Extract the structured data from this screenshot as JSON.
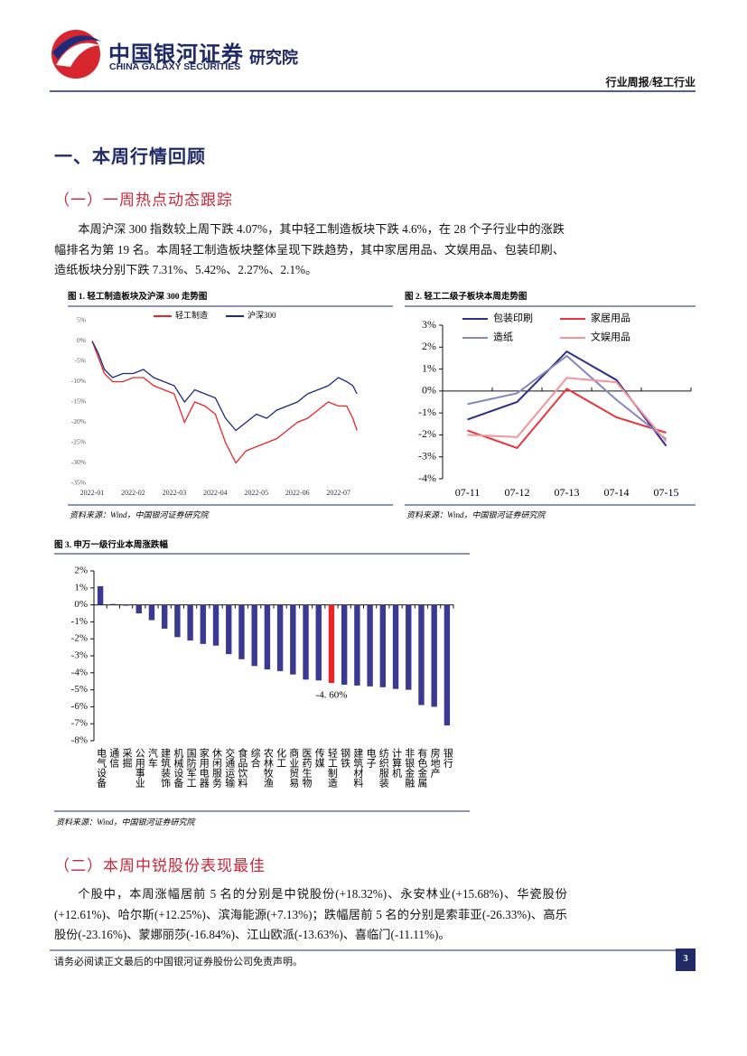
{
  "header": {
    "company": "中国银河证券",
    "company_en": "CHINA GALAXY SECURITIES",
    "institute": "研究院",
    "report_type": "行业周报/轻工行业"
  },
  "section_title": "一、本周行情回顾",
  "subsections": [
    {
      "title": "（一）一周热点动态跟踪",
      "paragraph": "本周沪深 300 指数较上周下跌 4.07%，其中轻工制造板块下跌 4.6%，在 28 个子行业中的涨跌幅排名为第 19 名。本周轻工制造板块整体呈现下跌趋势，其中家居用品、文娱用品、包装印刷、造纸板块分别下跌 7.31%、5.42%、2.27%、2.1%。"
    },
    {
      "title": "（二）本周中锐股份表现最佳",
      "paragraph": "个股中，本周涨幅居前 5 名的分别是中锐股份(+18.32%)、永安林业(+15.68%)、华瓷股份(+12.61%)、哈尔斯(+12.25%)、滨海能源(+7.13%)；跌幅居前 5 名的分别是索菲亚(-26.33%)、高乐股份(-23.16%)、蒙娜丽莎(-16.84%)、江山欧派(-13.63%)、喜临门(-11.11%)。"
    }
  ],
  "chart_data": [
    {
      "type": "line",
      "title": "图 1. 轻工制造板块及沪深 300 走势图",
      "source": "资料来源：Wind，中国银河证券研究院",
      "x": [
        1,
        1.15,
        1.3,
        1.5,
        1.75,
        2,
        2.25,
        2.5,
        2.75,
        3,
        3.25,
        3.5,
        3.75,
        4,
        4.25,
        4.5,
        4.75,
        5,
        5.25,
        5.5,
        5.75,
        6,
        6.25,
        6.5,
        6.75,
        7,
        7.2,
        7.35,
        7.45
      ],
      "xlim": [
        1,
        7.6
      ],
      "xticks": [
        {
          "value": 1,
          "label": "2022-01"
        },
        {
          "value": 2,
          "label": "2022-02"
        },
        {
          "value": 3,
          "label": "2022-03"
        },
        {
          "value": 4,
          "label": "2022-04"
        },
        {
          "value": 5,
          "label": "2022-05"
        },
        {
          "value": 6,
          "label": "2022-06"
        },
        {
          "value": 7,
          "label": "2022-07"
        }
      ],
      "ylim": [
        -35,
        5
      ],
      "yticks": [
        {
          "value": 5,
          "label": "5%"
        },
        {
          "value": 0,
          "label": "0%"
        },
        {
          "value": -5,
          "label": "-5%"
        },
        {
          "value": -10,
          "label": "-10%"
        },
        {
          "value": -15,
          "label": "-15%"
        },
        {
          "value": -20,
          "label": "-20%"
        },
        {
          "value": -25,
          "label": "-25%"
        },
        {
          "value": -30,
          "label": "-30%"
        },
        {
          "value": -35,
          "label": "-35%"
        }
      ],
      "legend": "top",
      "series": [
        {
          "name": "轻工制造",
          "color": "#e8262a",
          "values": [
            0,
            -4,
            -8,
            -10,
            -10,
            -9,
            -9,
            -11,
            -12,
            -13,
            -20,
            -15,
            -16,
            -18,
            -25,
            -30,
            -27,
            -26,
            -25,
            -24,
            -22,
            -20,
            -19,
            -17,
            -15,
            -16,
            -16,
            -19,
            -22
          ]
        },
        {
          "name": "沪深300",
          "color": "#1f2a7a",
          "values": [
            0,
            -3,
            -7,
            -9,
            -8,
            -8,
            -7,
            -9,
            -10,
            -11,
            -15,
            -12,
            -13,
            -14,
            -19,
            -22,
            -20,
            -18,
            -19,
            -17,
            -16,
            -15,
            -13,
            -12,
            -11,
            -9,
            -10,
            -11,
            -13
          ]
        }
      ]
    },
    {
      "type": "line",
      "title": "图 2. 轻工二级子板块本周走势图",
      "source": "资料来源：Wind，中国银河证券研究院",
      "categories": [
        "07-11",
        "07-12",
        "07-13",
        "07-14",
        "07-15"
      ],
      "ylim": [
        -4,
        3
      ],
      "yticks": [
        {
          "value": 3,
          "label": "3%"
        },
        {
          "value": 2,
          "label": "2%"
        },
        {
          "value": 1,
          "label": "1%"
        },
        {
          "value": 0,
          "label": "0%"
        },
        {
          "value": -1,
          "label": "-1%"
        },
        {
          "value": -2,
          "label": "-2%"
        },
        {
          "value": -3,
          "label": "-3%"
        },
        {
          "value": -4,
          "label": "-4%"
        }
      ],
      "legend": "top-left",
      "series": [
        {
          "name": "包装印刷",
          "color": "#2e2f86",
          "values": [
            -1.3,
            -0.5,
            1.8,
            0.5,
            -2.5
          ]
        },
        {
          "name": "家居用品",
          "color": "#e8343a",
          "values": [
            -1.8,
            -2.6,
            0.1,
            -1.2,
            -1.9
          ]
        },
        {
          "name": "造纸",
          "color": "#8486c0",
          "values": [
            -0.6,
            -0.1,
            1.6,
            -0.4,
            -2.2
          ]
        },
        {
          "name": "文娱用品",
          "color": "#f3949a",
          "values": [
            -2.0,
            -2.1,
            0.6,
            0.4,
            -2.3
          ]
        }
      ]
    },
    {
      "type": "bar",
      "title": "图 3. 申万一级行业本周涨跌幅",
      "source": "资料来源：Wind，中国银河证券研究院",
      "categories": [
        "电气设备",
        "通信",
        "采掘",
        "公用事业",
        "汽车",
        "建筑装饰",
        "机械设备",
        "国防军工",
        "家用电器",
        "休闲服务",
        "交通运输",
        "食品饮料",
        "综合",
        "农林牧渔",
        "化工",
        "商业贸易",
        "医药生物",
        "传媒",
        "轻工制造",
        "钢铁",
        "建筑材料",
        "电子",
        "纺织服装",
        "计算机",
        "非银金融",
        "有色金属",
        "房地产",
        "银行"
      ],
      "values": [
        1.1,
        0.05,
        -0.05,
        -0.5,
        -0.9,
        -1.4,
        -1.9,
        -2.1,
        -2.3,
        -2.4,
        -2.9,
        -3.2,
        -3.6,
        -3.8,
        -3.9,
        -4.1,
        -4.4,
        -4.45,
        -4.6,
        -4.7,
        -4.75,
        -4.8,
        -4.85,
        -4.95,
        -5.0,
        -5.9,
        -6.0,
        -7.1
      ],
      "value_labels": [
        null,
        null,
        null,
        null,
        null,
        null,
        null,
        null,
        null,
        null,
        null,
        null,
        null,
        null,
        null,
        null,
        null,
        null,
        "-4. 60%",
        null,
        null,
        null,
        null,
        null,
        null,
        null,
        null,
        null
      ],
      "colors": [
        "#3b3a92",
        "#3b3a92",
        "#3b3a92",
        "#3b3a92",
        "#3b3a92",
        "#3b3a92",
        "#3b3a92",
        "#3b3a92",
        "#3b3a92",
        "#3b3a92",
        "#3b3a92",
        "#3b3a92",
        "#3b3a92",
        "#3b3a92",
        "#3b3a92",
        "#3b3a92",
        "#3b3a92",
        "#3b3a92",
        "#e8262a",
        "#3b3a92",
        "#3b3a92",
        "#3b3a92",
        "#3b3a92",
        "#3b3a92",
        "#3b3a92",
        "#3b3a92",
        "#3b3a92",
        "#3b3a92"
      ],
      "ylim": [
        -8,
        2
      ],
      "yticks": [
        {
          "value": 2,
          "label": "2%"
        },
        {
          "value": 1,
          "label": "1%"
        },
        {
          "value": 0,
          "label": "0%"
        },
        {
          "value": -1,
          "label": "-1%"
        },
        {
          "value": -2,
          "label": "-2%"
        },
        {
          "value": -3,
          "label": "-3%"
        },
        {
          "value": -4,
          "label": "-4%"
        },
        {
          "value": -5,
          "label": "-5%"
        },
        {
          "value": -6,
          "label": "-6%"
        },
        {
          "value": -7,
          "label": "-7%"
        },
        {
          "value": -8,
          "label": "-8%"
        }
      ]
    }
  ],
  "footer": {
    "disclaimer": "请务必阅读正文最后的中国银河证券股份公司免责声明。",
    "page": 3
  }
}
